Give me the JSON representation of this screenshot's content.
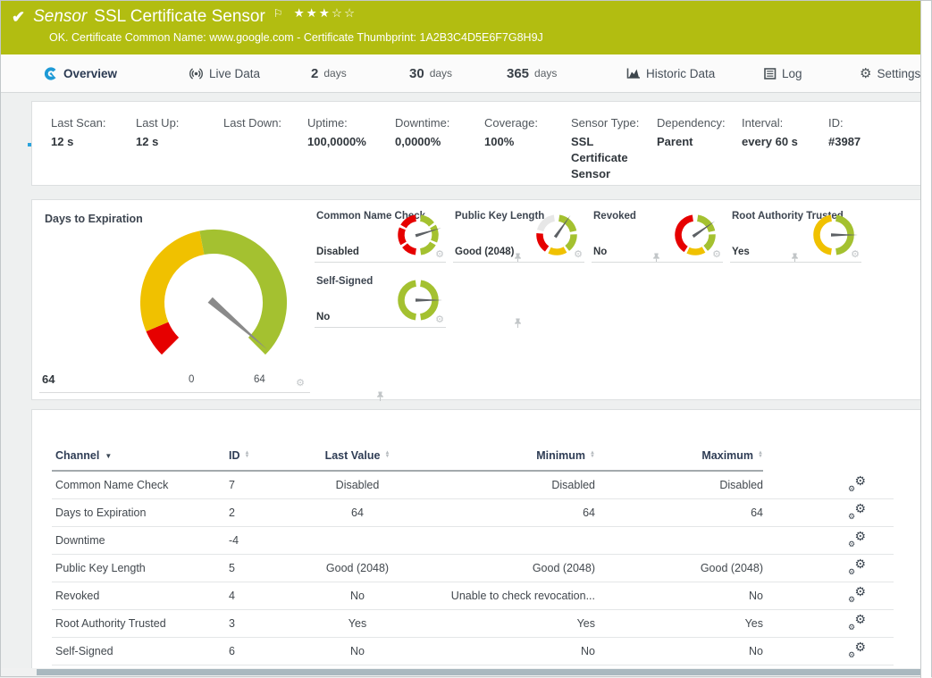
{
  "header": {
    "kind_label": "Sensor",
    "title": "SSL Certificate Sensor",
    "stars_filled": 3,
    "stars_total": 5,
    "status_message": "OK. Certificate Common Name: www.google.com - Certificate Thumbprint: 1A2B3C4D5E6F7G8H9J",
    "bg_color": "#b2bd11"
  },
  "tabs": [
    {
      "label": "Overview",
      "icon": "gauge-icon",
      "active": true
    },
    {
      "label": "Live Data",
      "icon": "broadcast-icon",
      "active": false
    },
    {
      "number": "2",
      "label": "days",
      "active": false
    },
    {
      "number": "30",
      "label": "days",
      "active": false
    },
    {
      "number": "365",
      "label": "days",
      "active": false
    },
    {
      "label": "Historic Data",
      "icon": "chart-icon",
      "active": false
    },
    {
      "label": "Log",
      "icon": "log-icon",
      "active": false
    },
    {
      "label": "Settings",
      "icon": "gear-icon",
      "active": false
    }
  ],
  "info_bar": {
    "fields": [
      {
        "label": "Last Scan:",
        "value": "12 s"
      },
      {
        "label": "Last Up:",
        "value": "12 s"
      },
      {
        "label": "Last Down:",
        "value": ""
      },
      {
        "label": "Uptime:",
        "value": "100,0000%"
      },
      {
        "label": "Downtime:",
        "value": "0,0000%"
      },
      {
        "label": "Coverage:",
        "value": "100%"
      },
      {
        "label": "Sensor Type:",
        "value": "SSL Certificate Sensor"
      },
      {
        "label": "Dependency:",
        "value": "Parent"
      },
      {
        "label": "Interval:",
        "value": "every 60 s"
      },
      {
        "label": "ID:",
        "value": "#3987"
      }
    ]
  },
  "gauges": {
    "colors": {
      "green": "#a4c130",
      "yellow": "#f0c100",
      "red": "#e60000",
      "gray": "#e7e7e7",
      "needle_main": "#8a8a8a",
      "needle_small": "#5d6165"
    },
    "main": {
      "title": "Days to Expiration",
      "value": "64",
      "scale_min": "0",
      "scale_max": "64",
      "needle_deg": 131,
      "segments": [
        {
          "color": "red",
          "from": 225,
          "to": 247
        },
        {
          "color": "yellow",
          "from": 247,
          "to": 349
        },
        {
          "color": "green",
          "from": 349,
          "to": 495
        }
      ]
    },
    "small": [
      {
        "title": "Common Name Check",
        "value": "Disabled",
        "needle_deg": 73,
        "segments": [
          {
            "color": "green",
            "from": 8,
            "to": 52
          },
          {
            "color": "green",
            "from": 60,
            "to": 112
          },
          {
            "color": "green",
            "from": 120,
            "to": 172
          },
          {
            "color": "red",
            "from": 188,
            "to": 232
          },
          {
            "color": "red",
            "from": 240,
            "to": 292
          },
          {
            "color": "red",
            "from": 300,
            "to": 352
          }
        ]
      },
      {
        "title": "Public Key Length",
        "value": "Good (2048)",
        "needle_deg": 35,
        "segments": [
          {
            "color": "green",
            "from": 8,
            "to": 78
          },
          {
            "color": "green",
            "from": 88,
            "to": 142
          },
          {
            "color": "yellow",
            "from": 150,
            "to": 205
          },
          {
            "color": "red",
            "from": 215,
            "to": 275
          },
          {
            "color": "gray",
            "from": 285,
            "to": 352
          }
        ]
      },
      {
        "title": "Revoked",
        "value": "No",
        "needle_deg": 55,
        "segments": [
          {
            "color": "green",
            "from": 8,
            "to": 78
          },
          {
            "color": "green",
            "from": 88,
            "to": 142
          },
          {
            "color": "yellow",
            "from": 150,
            "to": 205
          },
          {
            "color": "red",
            "from": 213,
            "to": 352
          }
        ]
      },
      {
        "title": "Root Authority Trusted",
        "value": "Yes",
        "needle_deg": 90,
        "segments": [
          {
            "color": "green",
            "from": 8,
            "to": 172
          },
          {
            "color": "yellow",
            "from": 188,
            "to": 352
          }
        ]
      },
      {
        "title": "Self-Signed",
        "value": "No",
        "needle_deg": 90,
        "segments": [
          {
            "color": "green",
            "from": 8,
            "to": 172
          },
          {
            "color": "green",
            "from": 188,
            "to": 352
          }
        ]
      }
    ]
  },
  "table": {
    "columns": [
      {
        "label": "Channel",
        "sorted": true
      },
      {
        "label": "ID",
        "sorted": false
      },
      {
        "label": "Last Value",
        "sorted": false
      },
      {
        "label": "Minimum",
        "sorted": false
      },
      {
        "label": "Maximum",
        "sorted": false
      }
    ],
    "rows": [
      {
        "channel": "Common Name Check",
        "id": "7",
        "last": "Disabled",
        "min": "Disabled",
        "max": "Disabled"
      },
      {
        "channel": "Days to Expiration",
        "id": "2",
        "last": "64",
        "min": "64",
        "max": "64"
      },
      {
        "channel": "Downtime",
        "id": "-4",
        "last": "",
        "min": "",
        "max": ""
      },
      {
        "channel": "Public Key Length",
        "id": "5",
        "last": "Good (2048)",
        "min": "Good (2048)",
        "max": "Good (2048)"
      },
      {
        "channel": "Revoked",
        "id": "4",
        "last": "No",
        "min": "Unable to check revocation...",
        "max": "No"
      },
      {
        "channel": "Root Authority Trusted",
        "id": "3",
        "last": "Yes",
        "min": "Yes",
        "max": "Yes"
      },
      {
        "channel": "Self-Signed",
        "id": "6",
        "last": "No",
        "min": "No",
        "max": "No"
      }
    ]
  },
  "colors": {
    "header_bg": "#b2bd11",
    "accent_blue": "#2aa3dc",
    "tab_icon_blue": "#1e9ad6",
    "navy_text": "#2f3d55"
  }
}
